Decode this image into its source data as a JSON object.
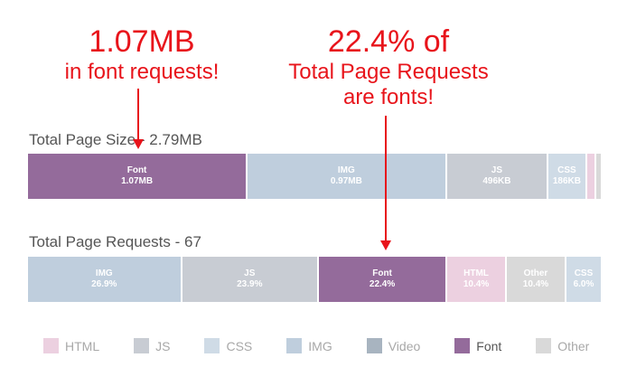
{
  "annotations": {
    "size": {
      "line1": "1.07MB",
      "line2": "in font requests!"
    },
    "requests": {
      "line1": "22.4% of",
      "line2": "Total Page Requests",
      "line3": "are fonts!"
    }
  },
  "colors": {
    "annotation": "#e8141b",
    "HTML": "#ecd0e0",
    "JS": "#c8ccd3",
    "CSS": "#cfdbe6",
    "IMG": "#bfcedd",
    "Video": "#a8b4c0",
    "Font": "#946b9b",
    "Other": "#d9d9d9"
  },
  "chart_data": [
    {
      "type": "bar",
      "orientation": "horizontal-stacked",
      "title": "Total Page Size - 2.79MB",
      "total": 2.79,
      "unit": "MB",
      "segments": [
        {
          "category": "Font",
          "value": 1.07,
          "label_name": "Font",
          "label_value": "1.07MB"
        },
        {
          "category": "IMG",
          "value": 0.97,
          "label_name": "IMG",
          "label_value": "0.97MB"
        },
        {
          "category": "JS",
          "value": 0.496,
          "label_name": "JS",
          "label_value": "496KB"
        },
        {
          "category": "CSS",
          "value": 0.186,
          "label_name": "CSS",
          "label_value": "186KB"
        },
        {
          "category": "HTML",
          "value": 0.045,
          "label_name": "",
          "label_value": ""
        },
        {
          "category": "Other",
          "value": 0.023,
          "label_name": "",
          "label_value": ""
        }
      ]
    },
    {
      "type": "bar",
      "orientation": "horizontal-stacked",
      "title": "Total Page Requests - 67",
      "total": 100,
      "unit": "%",
      "segments": [
        {
          "category": "IMG",
          "value": 26.9,
          "label_name": "IMG",
          "label_value": "26.9%"
        },
        {
          "category": "JS",
          "value": 23.9,
          "label_name": "JS",
          "label_value": "23.9%"
        },
        {
          "category": "Font",
          "value": 22.4,
          "label_name": "Font",
          "label_value": "22.4%"
        },
        {
          "category": "HTML",
          "value": 10.4,
          "label_name": "HTML",
          "label_value": "10.4%"
        },
        {
          "category": "Other",
          "value": 10.4,
          "label_name": "Other",
          "label_value": "10.4%"
        },
        {
          "category": "CSS",
          "value": 6.0,
          "label_name": "CSS",
          "label_value": "6.0%"
        }
      ]
    }
  ],
  "legend": [
    {
      "label": "HTML",
      "category": "HTML"
    },
    {
      "label": "JS",
      "category": "JS"
    },
    {
      "label": "CSS",
      "category": "CSS"
    },
    {
      "label": "IMG",
      "category": "IMG"
    },
    {
      "label": "Video",
      "category": "Video"
    },
    {
      "label": "Font",
      "category": "Font",
      "active": true
    },
    {
      "label": "Other",
      "category": "Other"
    }
  ]
}
